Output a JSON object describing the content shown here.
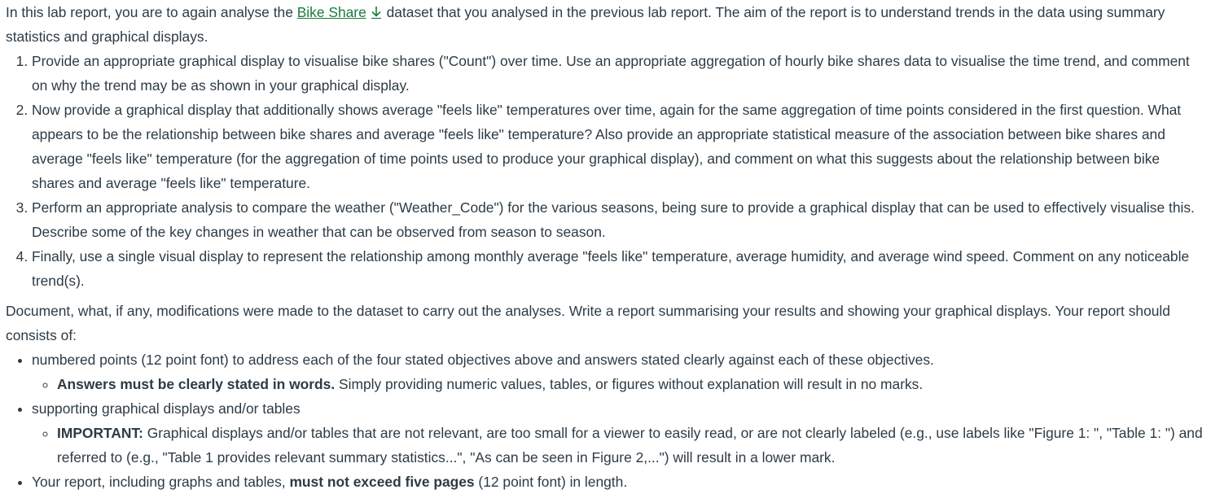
{
  "intro": {
    "before_link": "In this lab report, you are to again analyse the ",
    "link_text": "Bike Share",
    "link_icon": "download-icon",
    "after_link": " dataset that you analysed in the previous lab report.  The aim of the report is to understand trends in the data using summary statistics and graphical displays."
  },
  "objectives": [
    "Provide an appropriate graphical display to visualise bike shares (\"Count\") over time.  Use an appropriate aggregation of hourly bike shares data to visualise the time trend, and comment on why the trend may be as shown in your graphical display.",
    "Now provide a graphical display that additionally shows average \"feels like\" temperatures over time, again for the same aggregation of time points considered in the first question. What appears to be the relationship between bike shares and average \"feels like\" temperature?  Also provide an appropriate statistical measure of the association between bike shares and average \"feels like\" temperature (for the aggregation of time points used to produce your graphical display), and comment on what this suggests about the relationship between bike shares and average \"feels like\" temperature.",
    "Perform an appropriate analysis to compare the weather (\"Weather_Code\") for the various seasons, being sure to provide a graphical display that can be used to effectively visualise this.  Describe some of the key changes in weather that can be observed from season to season.",
    "Finally, use a single visual display to represent the relationship among monthly average \"feels like\" temperature, average humidity, and average wind speed. Comment on any noticeable trend(s)."
  ],
  "document_para": "Document, what, if any, modifications were made to the dataset to carry out the analyses.  Write a report summarising your results and showing your graphical displays.  Your report should consists of:",
  "report_items": {
    "item1": "numbered points (12 point font) to address each of the four stated objectives above and answers stated clearly against each of these objectives.",
    "item1_sub_bold": "Answers must be clearly stated in words.",
    "item1_sub_rest": "  Simply providing numeric values, tables, or figures without explanation will result in no marks.",
    "item2": "supporting graphical displays and/or tables",
    "item2_sub_bold": "IMPORTANT:",
    "item2_sub_rest": " Graphical displays and/or tables that are not relevant, are too small for a viewer to easily read, or are not clearly labeled (e.g., use labels like \"Figure 1: \", \"Table 1: \") and referred to (e.g., \"Table 1 provides relevant summary statistics...\", \"As can be seen in Figure 2,...\") will result in a lower mark.",
    "item3_before": "Your report, including graphs and tables, ",
    "item3_bold": "must not exceed five pages",
    "item3_after": " (12 point font) in length."
  }
}
